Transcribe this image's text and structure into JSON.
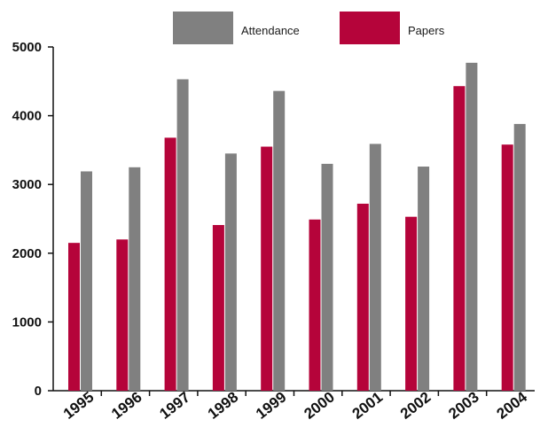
{
  "chart_data": {
    "type": "bar",
    "categories": [
      "1995",
      "1996",
      "1997",
      "1998",
      "1999",
      "2000",
      "2001",
      "2002",
      "2003",
      "2004"
    ],
    "series": [
      {
        "name": "Papers",
        "color": "#b5043a",
        "values": [
          2150,
          2200,
          3680,
          2410,
          3550,
          2490,
          2720,
          2530,
          4430,
          3580
        ]
      },
      {
        "name": "Attendance",
        "color": "#808080",
        "values": [
          3190,
          3250,
          4530,
          3450,
          4360,
          3300,
          3590,
          3260,
          4770,
          3880
        ]
      }
    ],
    "legend_order": [
      "Attendance",
      "Papers"
    ],
    "legend_position": "top",
    "ylim": [
      0,
      5000
    ],
    "yticks": [
      "0",
      "1000",
      "2000",
      "3000",
      "4000",
      "5000"
    ],
    "grid": false,
    "title": "",
    "xlabel": "",
    "ylabel": ""
  }
}
